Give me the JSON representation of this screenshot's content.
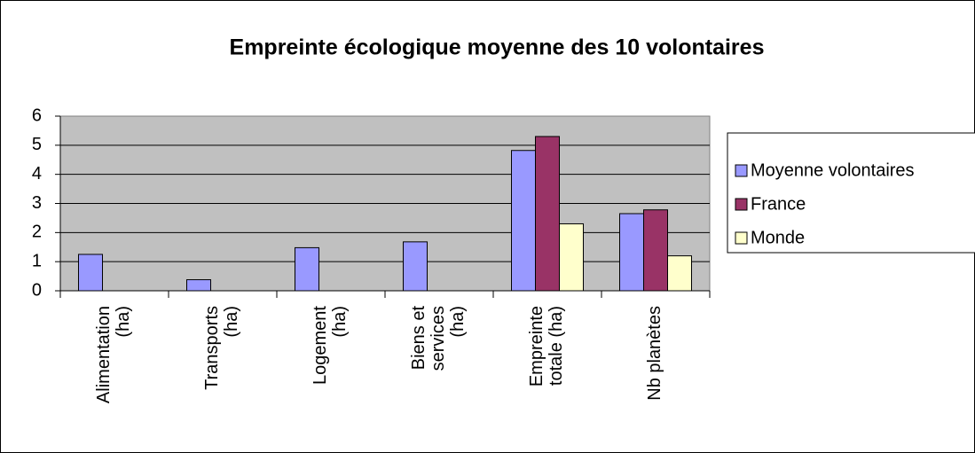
{
  "chart_data": {
    "type": "bar",
    "title": "Empreinte écologique moyenne des 10 volontaires",
    "categories": [
      "Alimentation\n(ha)",
      "Transports\n(ha)",
      "Logement\n(ha)",
      "Biens et\nservices\n(ha)",
      "Empreinte\ntotale (ha)",
      "Nb planètes"
    ],
    "series": [
      {
        "name": "Moyenne volontaires",
        "color": "#9999ff",
        "values": [
          1.25,
          0.38,
          1.48,
          1.68,
          4.82,
          2.65
        ]
      },
      {
        "name": "France",
        "color": "#993366",
        "values": [
          null,
          null,
          null,
          null,
          5.3,
          2.78
        ]
      },
      {
        "name": "Monde",
        "color": "#ffffcc",
        "values": [
          null,
          null,
          null,
          null,
          2.3,
          1.2
        ]
      }
    ],
    "ylim": [
      0,
      6
    ],
    "yticks": [
      0,
      1,
      2,
      3,
      4,
      5,
      6
    ],
    "grid": true,
    "legend": "right"
  }
}
